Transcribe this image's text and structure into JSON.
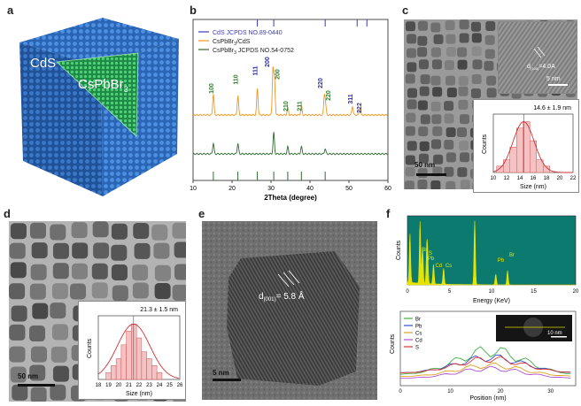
{
  "figure": {
    "panels": [
      "a",
      "b",
      "c",
      "d",
      "e",
      "f"
    ]
  },
  "panel_a": {
    "label": "a",
    "shell_label": "CdS",
    "core_label": "CsPbBr",
    "core_subscript": "3",
    "colors": {
      "shell": "#2d6fc0",
      "core": "#2fb55a"
    }
  },
  "panel_b": {
    "label": "b",
    "legend": {
      "cds_ref": "CdS JCPDS NO.89-0440",
      "composite": "CsPbBr",
      "composite_tail": "/CdS",
      "perov_ref": "CsPbBr",
      "perov_tail": " JCPDS NO.54-0752",
      "sub3": "3"
    },
    "peak_labels": [
      "100",
      "110",
      "111",
      "200",
      "200",
      "210",
      "211",
      "220",
      "220",
      "311",
      "222"
    ],
    "colors": {
      "cds_ref": "#3a3ab8",
      "composite": "#f0961e",
      "perov_ref": "#2f6b2f",
      "peak_label_green": "#2f7a2f",
      "peak_label_blue": "#2a2aa8"
    }
  },
  "chart_data": [
    {
      "type": "line",
      "title": "",
      "xlabel": "2Theta (degree)",
      "ylabel": "",
      "xlim": [
        10,
        60
      ],
      "x_ticks": [
        "10",
        "20",
        "30",
        "40",
        "50",
        "60"
      ],
      "series": [
        {
          "name": "CsPbBr3/CdS",
          "peaks_2theta": [
            15.2,
            21.5,
            26.5,
            30.5,
            30.9,
            34.3,
            37.8,
            43.7,
            44.0,
            50.9,
            52.8
          ]
        },
        {
          "name": "CsPbBr3 JCPDS NO.54-0752",
          "peaks_2theta": [
            15.2,
            21.5,
            30.7,
            34.3,
            37.8,
            43.9
          ]
        }
      ],
      "ref_cds_lines": [
        26.5,
        30.7,
        43.9,
        52.1,
        54.6
      ],
      "ref_perov_lines": [
        15.2,
        21.5,
        26.5,
        30.7,
        34.3,
        37.8,
        43.9
      ]
    },
    {
      "type": "bar",
      "panel": "c-inset",
      "title": "14.6 ± 1.9 nm",
      "xlabel": "Size (nm)",
      "ylabel": "Counts",
      "x_ticks": [
        "10",
        "12",
        "14",
        "16",
        "18",
        "20",
        "22"
      ],
      "xlim": [
        10,
        22
      ],
      "categories": [
        "11",
        "12",
        "13",
        "14",
        "15",
        "16",
        "17",
        "18"
      ],
      "values": [
        1,
        2,
        4,
        7,
        8,
        5,
        2,
        1
      ]
    },
    {
      "type": "bar",
      "panel": "d-inset",
      "title": "21.3 ± 1.5 nm",
      "xlabel": "Size (nm)",
      "ylabel": "Counts",
      "x_ticks": [
        "18",
        "19",
        "20",
        "21",
        "22",
        "23",
        "24",
        "25",
        "26"
      ],
      "xlim": [
        18,
        26
      ],
      "categories": [
        "19",
        "19.5",
        "20",
        "20.5",
        "21",
        "21.5",
        "22",
        "22.5",
        "23",
        "23.5",
        "24"
      ],
      "values": [
        1,
        2,
        3,
        5,
        7,
        8,
        6,
        4,
        3,
        2,
        1
      ]
    },
    {
      "type": "line",
      "panel": "f-eds",
      "xlabel": "Energy (KeV)",
      "ylabel": "Counts",
      "x_ticks": [
        "0",
        "5",
        "10",
        "15",
        "20"
      ],
      "xlim": [
        0,
        20
      ],
      "peak_labels": [
        "Br",
        "S",
        "Pb",
        "Cd",
        "Cs",
        "Pb",
        "Br"
      ]
    },
    {
      "type": "line",
      "panel": "f-linescan",
      "xlabel": "Position (nm)",
      "ylabel": "Counts",
      "x_ticks": [
        "0",
        "10",
        "20",
        "30"
      ],
      "xlim": [
        0,
        35
      ],
      "series": [
        {
          "name": "Br",
          "color": "#3cb043"
        },
        {
          "name": "Pb",
          "color": "#3050d0"
        },
        {
          "name": "Cs",
          "color": "#e0a020"
        },
        {
          "name": "Cd",
          "color": "#b050d0"
        },
        {
          "name": "S",
          "color": "#e03030"
        }
      ]
    }
  ],
  "panel_c": {
    "label": "c",
    "scale_main": "50 nm",
    "scale_hr": "5 nm",
    "d_label": "d",
    "d_sub": "(100)",
    "d_value": "=4.0A",
    "hist_title": "14.6 ± 1.9 nm",
    "hist_xlabel": "Size (nm)",
    "hist_ylabel": "Counts"
  },
  "panel_d": {
    "label": "d",
    "scale": "50 nm",
    "hist_title": "21.3 ± 1.5 nm",
    "hist_xlabel": "Size (nm)",
    "hist_ylabel": "Counts"
  },
  "panel_e": {
    "label": "e",
    "scale": "5 nm",
    "d_label": "d",
    "d_sub": "(001)",
    "d_value": "= 5.8 Å"
  },
  "panel_f": {
    "label": "f",
    "eds_xlabel": "Energy (KeV)",
    "eds_ylabel": "Counts",
    "eds_peak_labels": [
      "Br",
      "S",
      "Pb",
      "Cd",
      "Cs",
      "Pb",
      "Br"
    ],
    "scan_xlabel": "Position (nm)",
    "scan_ylabel": "Counts",
    "scan_scale": "10 nm",
    "legend": [
      "Br",
      "Pb",
      "Cs",
      "Cd",
      "S"
    ],
    "colors": {
      "eds_fill": "#e4e400",
      "eds_bg": "#0d7a70"
    }
  }
}
